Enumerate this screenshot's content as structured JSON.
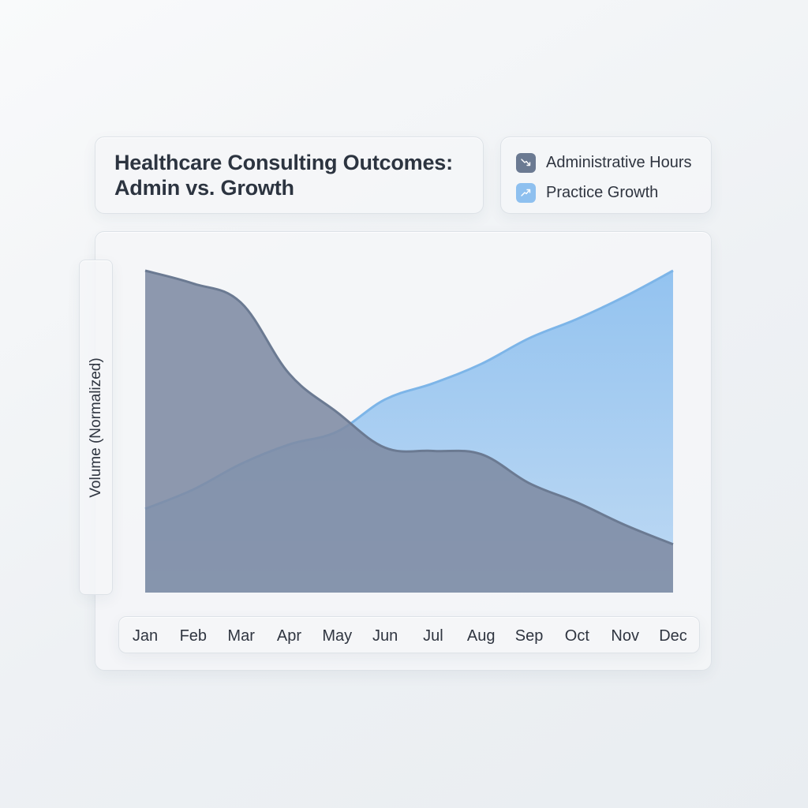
{
  "chart_data": {
    "type": "area",
    "title": "Healthcare Consulting Outcomes: Admin vs. Growth",
    "ylabel": "Volume (Normalized)",
    "xlabel": "",
    "categories": [
      "Jan",
      "Feb",
      "Mar",
      "Apr",
      "May",
      "Jun",
      "Jul",
      "Aug",
      "Sep",
      "Oct",
      "Nov",
      "Dec"
    ],
    "ylim": [
      0,
      100
    ],
    "grid": false,
    "legend_position": "top-right",
    "series": [
      {
        "name": "Administrative Hours",
        "values": [
          100,
          96,
          90,
          68,
          56,
          45,
          44,
          43,
          34,
          28,
          21,
          15
        ],
        "color": "#7e8ba3",
        "line_color": "#6b7a92",
        "icon": "trend-down-icon"
      },
      {
        "name": "Practice Growth",
        "values": [
          26,
          32,
          40,
          46,
          50,
          60,
          65,
          71,
          79,
          85,
          92,
          100
        ],
        "color": "#8ec0ef",
        "line_color": "#7db5e8",
        "icon": "trend-up-icon"
      }
    ]
  }
}
